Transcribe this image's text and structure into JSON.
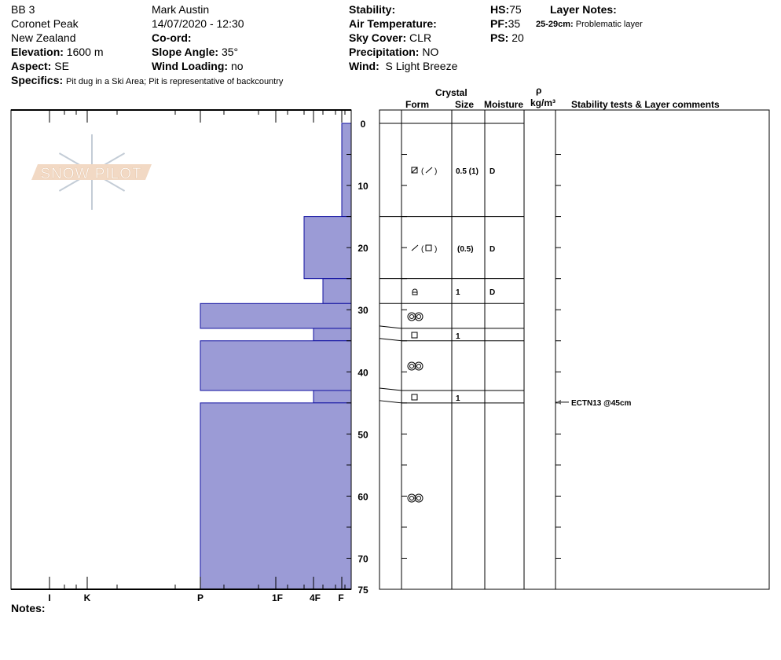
{
  "header": {
    "pit_name": "BB 3",
    "location": "Coronet Peak",
    "country": "New Zealand",
    "elevation_label": "Elevation:",
    "elevation": "1600 m",
    "aspect_label": "Aspect:",
    "aspect": "SE",
    "specifics_label": "Specifics:",
    "specifics": "Pit dug in a Ski Area; Pit is representative of backcountry",
    "observer": "Mark Austin",
    "datetime": "14/07/2020 - 12:30",
    "coord_label": "Co-ord:",
    "slope_label": "Slope Angle:",
    "slope": "35°",
    "wind_loading_label": "Wind Loading:",
    "wind_loading": "no",
    "stability_label": "Stability:",
    "air_temp_label": "Air Temperature:",
    "sky_label": "Sky Cover:",
    "sky": "CLR",
    "precip_label": "Precipitation:",
    "precip": "NO",
    "wind_label": "Wind:",
    "wind": "S Light Breeze",
    "hs_label": "HS:",
    "hs": "75",
    "pf_label": "PF:",
    "pf": "35",
    "ps_label": "PS:",
    "ps": "20",
    "layer_notes_label": "Layer Notes:",
    "layer_note_range": "25-29cm:",
    "layer_note_text": "Problematic layer"
  },
  "table_headers": {
    "crystal": "Crystal",
    "form": "Form",
    "size": "Size",
    "moisture": "Moisture",
    "rho": "ρ",
    "density_unit": "kg/m³",
    "stability": "Stability tests & Layer comments"
  },
  "logo": {
    "text": "SNOW PILOT",
    "colors": {
      "band": "#f2d9c4",
      "flake": "#c3ccd6"
    }
  },
  "depth_ticks": [
    "0",
    "10",
    "20",
    "30",
    "40",
    "50",
    "60",
    "70",
    "75"
  ],
  "hardness_labels": [
    "I",
    "K",
    "P",
    "1F",
    "4F",
    "F"
  ],
  "colors": {
    "bar_fill": "#9b9bd6",
    "bar_stroke": "#1010a0"
  },
  "layers": [
    {
      "top": 0,
      "bottom": 15,
      "hardness": "F",
      "form_icon": "faceted-rounded (decomposing)",
      "size": "0.5 (1)",
      "moisture": "D"
    },
    {
      "top": 15,
      "bottom": 25,
      "hardness": "4F+",
      "form_icon": "decomposing (faceted)",
      "size": "(0.5)",
      "moisture": "D"
    },
    {
      "top": 25,
      "bottom": 29,
      "hardness": "4F-",
      "form_icon": "depth-hoar-icon",
      "size": "1",
      "moisture": "D"
    },
    {
      "top": 29,
      "bottom": 33,
      "hardness": "P",
      "form_icon": "melt-forms",
      "size": "",
      "moisture": ""
    },
    {
      "top": 33,
      "bottom": 35,
      "hardness": "4F",
      "form_icon": "faceted",
      "size": "1",
      "moisture": ""
    },
    {
      "top": 35,
      "bottom": 43,
      "hardness": "P",
      "form_icon": "melt-forms",
      "size": "",
      "moisture": ""
    },
    {
      "top": 43,
      "bottom": 45,
      "hardness": "4F",
      "form_icon": "faceted",
      "size": "1",
      "moisture": ""
    },
    {
      "top": 45,
      "bottom": 75,
      "hardness": "P",
      "form_icon": "melt-forms",
      "size": "",
      "moisture": ""
    }
  ],
  "stability_tests": [
    {
      "depth": 45,
      "text": "ECTN13 @45cm"
    }
  ],
  "notes_label": "Notes:"
}
